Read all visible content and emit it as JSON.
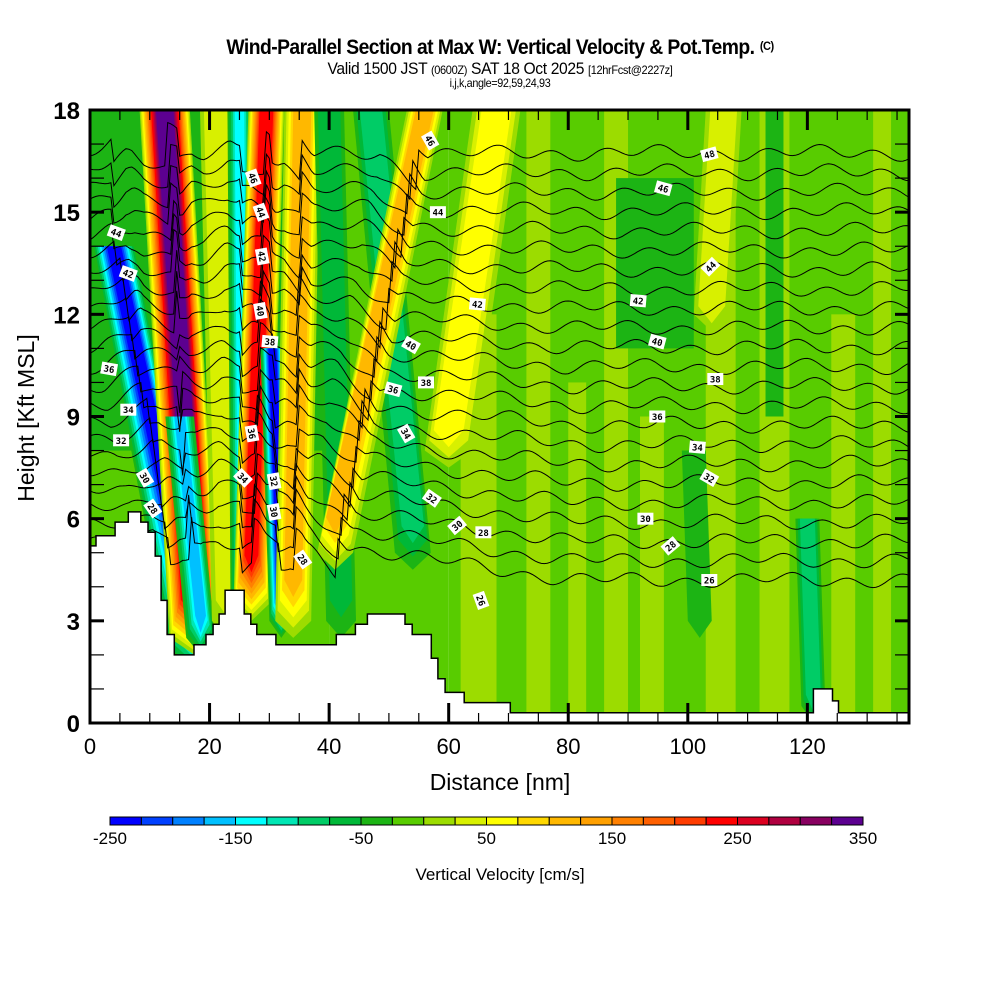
{
  "header": {
    "title": "Wind-Parallel Section at Max W: Vertical Velocity & Pot.Temp.",
    "copyright": "(C)",
    "valid_prefix": "Valid 1500 JST",
    "valid_utc": "(0600Z)",
    "valid_date": "SAT 18 Oct 2025",
    "forecast": "[12hrFcst@2227z]",
    "indices": "i,j,k,angle=92,59,24,93"
  },
  "chart_data": {
    "type": "heatmap",
    "title": "Wind-Parallel Section at Max W: Vertical Velocity & Pot.Temp.",
    "xlabel": "Distance [nm]",
    "ylabel": "Height [Kft MSL]",
    "xlim": [
      0,
      137
    ],
    "ylim": [
      0,
      18
    ],
    "x_ticks": [
      "0",
      "20",
      "40",
      "60",
      "80",
      "100",
      "120"
    ],
    "x_tick_values": [
      0,
      20,
      40,
      60,
      80,
      100,
      120
    ],
    "x_minor_step": 5,
    "y_ticks": [
      "0",
      "3",
      "6",
      "9",
      "12",
      "15",
      "18"
    ],
    "y_tick_values": [
      0,
      3,
      6,
      9,
      12,
      15,
      18
    ],
    "y_minor_step": 1,
    "colorbar": {
      "label": "Vertical Velocity [cm/s]",
      "min": -250,
      "max": 350,
      "step": 25,
      "tick_labels": [
        "-250",
        "-150",
        "-50",
        "50",
        "150",
        "250",
        "350"
      ],
      "tick_values": [
        -250,
        -150,
        -50,
        50,
        150,
        250,
        350
      ],
      "colors": [
        "#0000ff",
        "#0040ff",
        "#0080ff",
        "#00c0ff",
        "#00ffff",
        "#00e6b4",
        "#00cc66",
        "#00b838",
        "#1cb414",
        "#58cc00",
        "#9cdc00",
        "#d8f000",
        "#ffff00",
        "#ffd800",
        "#ffb800",
        "#ffa000",
        "#ff8000",
        "#ff6000",
        "#ff3c00",
        "#ff0000",
        "#dc0020",
        "#b00040",
        "#880060",
        "#5c0090"
      ]
    },
    "w_base_zones": [
      {
        "x": [
          0,
          40
        ],
        "h": [
          0,
          18
        ],
        "w": -30
      },
      {
        "x": [
          0,
          40
        ],
        "h": [
          0,
          8
        ],
        "w": -10
      },
      {
        "x": [
          40,
          60
        ],
        "h": [
          0,
          18
        ],
        "w": -10
      },
      {
        "x": [
          60,
          137
        ],
        "h": [
          0,
          18
        ],
        "w": -10
      },
      {
        "x": [
          62,
          68
        ],
        "h": [
          0,
          12
        ],
        "w": 10
      },
      {
        "x": [
          73,
          77
        ],
        "h": [
          0,
          18
        ],
        "w": 10
      },
      {
        "x": [
          80,
          83
        ],
        "h": [
          0,
          10
        ],
        "w": 10
      },
      {
        "x": [
          86,
          90
        ],
        "h": [
          0,
          18
        ],
        "w": 10
      },
      {
        "x": [
          92,
          96
        ],
        "h": [
          0,
          9
        ],
        "w": 10
      },
      {
        "x": [
          103,
          108
        ],
        "h": [
          0,
          18
        ],
        "w": 10
      },
      {
        "x": [
          112,
          117
        ],
        "h": [
          0,
          18
        ],
        "w": 10
      },
      {
        "x": [
          124,
          128
        ],
        "h": [
          0,
          12
        ],
        "w": 10
      },
      {
        "x": [
          131,
          134
        ],
        "h": [
          0,
          18
        ],
        "w": 10
      },
      {
        "x": [
          88,
          101
        ],
        "h": [
          11,
          16
        ],
        "w": -30
      },
      {
        "x": [
          113,
          116
        ],
        "h": [
          9,
          18
        ],
        "w": -30
      }
    ],
    "w_bands": [
      {
        "bottom": [
          17,
          2
        ],
        "top": [
          4,
          14
        ],
        "peak": -225,
        "width": 3.6
      },
      {
        "bottom": [
          17.5,
          2.5
        ],
        "top": [
          12.5,
          18
        ],
        "peak": 330,
        "width": 4.2
      },
      {
        "bottom": [
          18.5,
          2.5
        ],
        "top": [
          15,
          9
        ],
        "peak": -150,
        "width": 2.4
      },
      {
        "bottom": [
          23,
          3
        ],
        "top": [
          21,
          18
        ],
        "peak": 35,
        "width": 2.6
      },
      {
        "bottom": [
          25.5,
          3.5
        ],
        "top": [
          25,
          18
        ],
        "peak": -125,
        "width": 2.0
      },
      {
        "bottom": [
          27,
          3.5
        ],
        "top": [
          29.5,
          18
        ],
        "peak": 240,
        "width": 3.0
      },
      {
        "bottom": [
          32,
          3
        ],
        "top": [
          30.5,
          11
        ],
        "peak": -225,
        "width": 2.0
      },
      {
        "bottom": [
          34,
          3
        ],
        "top": [
          35.5,
          18
        ],
        "peak": 120,
        "width": 3.0
      },
      {
        "bottom": [
          42,
          3
        ],
        "top": [
          40,
          18
        ],
        "peak": -60,
        "width": 2.5
      },
      {
        "bottom": [
          54,
          5
        ],
        "top": [
          47,
          18
        ],
        "peak": -80,
        "width": 3.0
      },
      {
        "bottom": [
          41,
          5
        ],
        "top": [
          56,
          18
        ],
        "peak": 110,
        "width": 3.0
      },
      {
        "bottom": [
          60,
          8
        ],
        "top": [
          68,
          18
        ],
        "peak": 60,
        "width": 4.0
      },
      {
        "bottom": [
          104,
          12
        ],
        "top": [
          106,
          18
        ],
        "peak": 35,
        "width": 3.0
      },
      {
        "bottom": [
          121,
          0.5
        ],
        "top": [
          120,
          6
        ],
        "peak": -80,
        "width": 2.0
      },
      {
        "bottom": [
          102,
          3
        ],
        "top": [
          101,
          8
        ],
        "peak": -40,
        "width": 2.0
      }
    ],
    "theta_contours": {
      "label": "Pot.Temp.",
      "min": 26,
      "max": 48,
      "interval": 1,
      "labels": [
        {
          "value": "44",
          "x": 4.4,
          "y": 14.4
        },
        {
          "value": "42",
          "x": 6.4,
          "y": 13.2
        },
        {
          "value": "36",
          "x": 3.2,
          "y": 10.4
        },
        {
          "value": "34",
          "x": 6.4,
          "y": 9.2
        },
        {
          "value": "32",
          "x": 5.2,
          "y": 8.3
        },
        {
          "value": "30",
          "x": 9.2,
          "y": 7.2
        },
        {
          "value": "28",
          "x": 10.5,
          "y": 6.3
        },
        {
          "value": "46",
          "x": 27.3,
          "y": 16.0
        },
        {
          "value": "44",
          "x": 28.6,
          "y": 15.0
        },
        {
          "value": "42",
          "x": 28.8,
          "y": 13.7
        },
        {
          "value": "40",
          "x": 28.5,
          "y": 12.1
        },
        {
          "value": "38",
          "x": 30.1,
          "y": 11.2
        },
        {
          "value": "36",
          "x": 27.1,
          "y": 8.5
        },
        {
          "value": "34",
          "x": 25.6,
          "y": 7.2
        },
        {
          "value": "32",
          "x": 30.8,
          "y": 7.1
        },
        {
          "value": "30",
          "x": 30.8,
          "y": 6.2
        },
        {
          "value": "28",
          "x": 35.6,
          "y": 4.8
        },
        {
          "value": "46",
          "x": 56.9,
          "y": 17.1
        },
        {
          "value": "44",
          "x": 58.2,
          "y": 15.0
        },
        {
          "value": "42",
          "x": 64.8,
          "y": 12.3
        },
        {
          "value": "40",
          "x": 53.7,
          "y": 11.1
        },
        {
          "value": "36",
          "x": 50.7,
          "y": 9.8
        },
        {
          "value": "38",
          "x": 56.2,
          "y": 10.0
        },
        {
          "value": "34",
          "x": 52.9,
          "y": 8.5
        },
        {
          "value": "32",
          "x": 57.2,
          "y": 6.6
        },
        {
          "value": "30",
          "x": 61.4,
          "y": 5.8
        },
        {
          "value": "28",
          "x": 65.8,
          "y": 5.6
        },
        {
          "value": "26",
          "x": 65.4,
          "y": 3.6
        },
        {
          "value": "48",
          "x": 103.6,
          "y": 16.7
        },
        {
          "value": "46",
          "x": 95.9,
          "y": 15.7
        },
        {
          "value": "44",
          "x": 103.8,
          "y": 13.4
        },
        {
          "value": "42",
          "x": 91.7,
          "y": 12.4
        },
        {
          "value": "40",
          "x": 94.9,
          "y": 11.2
        },
        {
          "value": "38",
          "x": 104.6,
          "y": 10.1
        },
        {
          "value": "36",
          "x": 94.9,
          "y": 9.0
        },
        {
          "value": "34",
          "x": 101.6,
          "y": 8.1
        },
        {
          "value": "32",
          "x": 103.6,
          "y": 7.2
        },
        {
          "value": "30",
          "x": 92.9,
          "y": 6.0
        },
        {
          "value": "28",
          "x": 97.1,
          "y": 5.2
        },
        {
          "value": "26",
          "x": 103.6,
          "y": 4.2
        }
      ]
    },
    "terrain": [
      [
        0,
        5.2
      ],
      [
        1.0,
        5.2
      ],
      [
        1.0,
        5.5
      ],
      [
        4.2,
        5.5
      ],
      [
        4.2,
        5.9
      ],
      [
        6.4,
        5.9
      ],
      [
        6.4,
        6.2
      ],
      [
        8.5,
        6.2
      ],
      [
        8.5,
        5.9
      ],
      [
        9.7,
        5.9
      ],
      [
        9.7,
        5.6
      ],
      [
        10.9,
        5.6
      ],
      [
        10.9,
        4.9
      ],
      [
        11.9,
        4.9
      ],
      [
        11.9,
        3.6
      ],
      [
        12.9,
        3.6
      ],
      [
        12.9,
        2.6
      ],
      [
        14.1,
        2.6
      ],
      [
        14.1,
        2.0
      ],
      [
        17.4,
        2.0
      ],
      [
        17.4,
        2.3
      ],
      [
        19.4,
        2.3
      ],
      [
        19.4,
        2.6
      ],
      [
        20.6,
        2.6
      ],
      [
        20.6,
        2.9
      ],
      [
        21.6,
        2.9
      ],
      [
        21.6,
        3.2
      ],
      [
        22.6,
        3.2
      ],
      [
        22.6,
        3.9
      ],
      [
        25.8,
        3.9
      ],
      [
        25.8,
        3.2
      ],
      [
        26.9,
        3.2
      ],
      [
        26.9,
        2.9
      ],
      [
        27.9,
        2.9
      ],
      [
        27.9,
        2.6
      ],
      [
        31.1,
        2.6
      ],
      [
        31.1,
        2.3
      ],
      [
        41.2,
        2.3
      ],
      [
        41.2,
        2.6
      ],
      [
        44.4,
        2.6
      ],
      [
        44.4,
        2.9
      ],
      [
        46.4,
        2.9
      ],
      [
        46.4,
        3.2
      ],
      [
        52.7,
        3.2
      ],
      [
        52.7,
        2.9
      ],
      [
        53.9,
        2.9
      ],
      [
        53.9,
        2.6
      ],
      [
        57.1,
        2.6
      ],
      [
        57.1,
        1.9
      ],
      [
        58.2,
        1.9
      ],
      [
        58.2,
        1.3
      ],
      [
        59.4,
        1.3
      ],
      [
        59.4,
        0.9
      ],
      [
        62.6,
        0.9
      ],
      [
        62.6,
        0.6
      ],
      [
        70.3,
        0.6
      ],
      [
        70.3,
        0.3
      ],
      [
        121.0,
        0.3
      ],
      [
        121.0,
        1.0
      ],
      [
        124.2,
        1.0
      ],
      [
        124.2,
        0.65
      ],
      [
        125.2,
        0.65
      ],
      [
        125.2,
        0.3
      ],
      [
        137,
        0.3
      ]
    ]
  }
}
